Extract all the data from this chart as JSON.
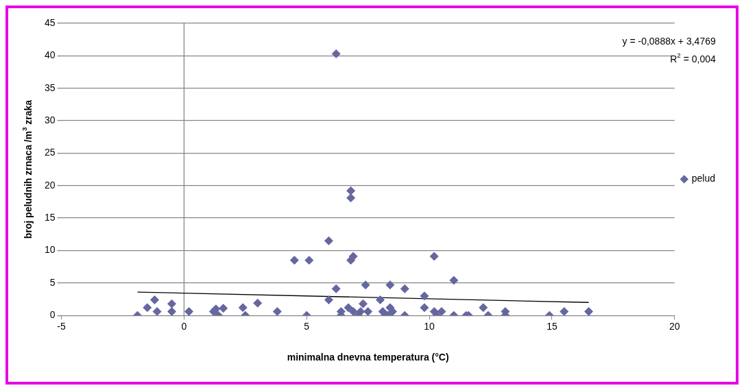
{
  "chart_data": {
    "type": "scatter",
    "xlabel": "minimalna dnevna temperatura (°C)",
    "ylabel": "broj peludnih zrnaca /m$^{3}$ zraka",
    "xlim": [
      -5,
      20
    ],
    "xticks": [
      -5,
      0,
      5,
      10,
      15,
      20
    ],
    "ylim": [
      0,
      45
    ],
    "yticks": [
      0,
      5,
      10,
      15,
      20,
      25,
      30,
      35,
      40,
      45
    ],
    "grid": "y",
    "legend": "right",
    "marker": "diamond",
    "ref_lines": [
      {
        "axis": "x",
        "value": 0,
        "color": "#868686"
      }
    ],
    "annotations": [
      "y = -0,0888x + 3,4769",
      "R$^{2}$ = 0,004"
    ],
    "series": [
      {
        "name": "pelud",
        "color": "#6667a0",
        "x": [
          -1.9,
          -1.5,
          -1.2,
          -1.1,
          -0.5,
          -0.5,
          0.2,
          1.2,
          1.3,
          1.4,
          1.6,
          2.4,
          2.5,
          3.0,
          3.8,
          5.0,
          4.5,
          5.1,
          5.9,
          5.9,
          6.2,
          6.2,
          6.4,
          6.4,
          6.7,
          6.8,
          6.8,
          6.8,
          6.9,
          6.9,
          7.1,
          7.2,
          7.3,
          7.4,
          7.5,
          8.0,
          8.1,
          8.2,
          8.3,
          8.4,
          8.4,
          8.5,
          9.0,
          9.0,
          9.8,
          9.8,
          10.2,
          10.2,
          10.3,
          10.5,
          11.0,
          11.0,
          11.5,
          11.6,
          12.2,
          12.4,
          13.1,
          13.1,
          14.9,
          15.5,
          16.5
        ],
        "values": [
          0,
          1.2,
          2.4,
          0.6,
          1.8,
          0.6,
          0.6,
          0.6,
          1.0,
          0,
          1.1,
          1.2,
          0,
          1.9,
          0.6,
          0,
          8.5,
          8.5,
          11.5,
          2.4,
          4.1,
          40.3,
          0.6,
          0,
          1.2,
          8.5,
          18.1,
          19.2,
          9.1,
          0.6,
          0,
          0.6,
          1.8,
          4.7,
          0.6,
          2.4,
          0.6,
          0,
          0,
          1.2,
          4.7,
          0.6,
          4.1,
          0,
          3.0,
          1.2,
          9.1,
          0.6,
          0,
          0.6,
          5.4,
          0,
          0,
          0,
          1.2,
          0,
          0.6,
          0,
          0,
          0.6,
          0.6
        ]
      },
      {
        "type": "line",
        "color": "#000000",
        "marker": "none",
        "x": [
          -1.9,
          16.5
        ],
        "values": [
          3.6,
          2.0
        ]
      }
    ]
  }
}
